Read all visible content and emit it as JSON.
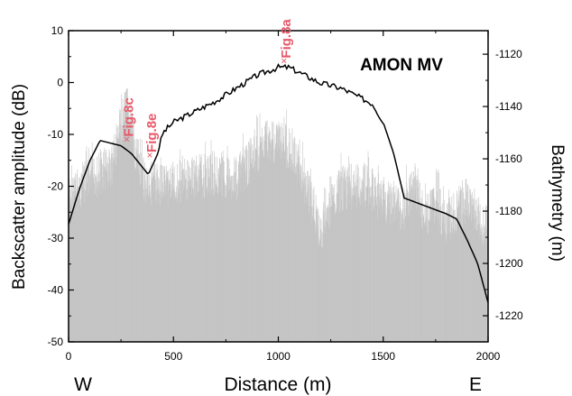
{
  "chart_data": {
    "type": "area",
    "title": "AMON MV",
    "xlabel": "Distance (m)",
    "ylabel_left": "Backscatter amplitude (dB)",
    "ylabel_right": "Bathymetry (m)",
    "xlim": [
      0,
      2000
    ],
    "ylim_left": [
      -50,
      10
    ],
    "ylim_right": [
      -1230,
      -1111
    ],
    "x_ticks": [
      "0",
      "500",
      "1000",
      "1500",
      "2000"
    ],
    "y_left_ticks": [
      "10",
      "0",
      "-10",
      "-20",
      "-30",
      "-40",
      "-50"
    ],
    "y_right_ticks": [
      "-1120",
      "-1140",
      "-1160",
      "-1180",
      "-1200",
      "-1220"
    ],
    "direction_labels": {
      "west": "W",
      "east": "E"
    },
    "colors": {
      "backscatter": "#c0c0c0",
      "bathymetry": "#000000",
      "annotation": "#e8596a"
    },
    "series": [
      {
        "kind": "backscatter_upper_envelope",
        "axis": "left",
        "x": [
          0,
          100,
          200,
          250,
          280,
          300,
          350,
          400,
          500,
          600,
          700,
          800,
          900,
          950,
          1000,
          1050,
          1100,
          1150,
          1200,
          1220,
          1300,
          1400,
          1500,
          1600,
          1650,
          1700,
          1750,
          1800,
          1900,
          2000
        ],
        "y": [
          -18,
          -14,
          -12,
          -4,
          0,
          -5,
          -14,
          -15,
          -15,
          -14,
          -13,
          -14,
          -9,
          -6,
          -7,
          -8,
          -12,
          -17,
          -25,
          -22,
          -16,
          -15,
          -18,
          -20,
          -14,
          -22,
          -18,
          -23,
          -18,
          -24
        ]
      },
      {
        "kind": "bathymetry",
        "axis": "right",
        "x": [
          0,
          50,
          100,
          150,
          200,
          250,
          300,
          350,
          380,
          420,
          450,
          500,
          600,
          700,
          800,
          900,
          1000,
          1050,
          1100,
          1200,
          1300,
          1400,
          1450,
          1500,
          1550,
          1600,
          1700,
          1800,
          1850,
          1900,
          1950,
          2000
        ],
        "y": [
          -1185,
          -1172,
          -1161,
          -1153,
          -1154,
          -1155,
          -1158,
          -1163,
          -1166,
          -1159,
          -1150,
          -1146,
          -1142,
          -1138,
          -1133,
          -1128,
          -1125,
          -1125,
          -1127,
          -1131,
          -1133,
          -1137,
          -1139,
          -1146,
          -1158,
          -1175,
          -1178,
          -1181,
          -1183,
          -1191,
          -1200,
          -1215
        ]
      }
    ],
    "annotations": [
      {
        "text": "Fig.8c",
        "x": 290,
        "y": -1155
      },
      {
        "text": "Fig.8e",
        "x": 400,
        "y": -1161
      },
      {
        "text": "Fig.8a",
        "x": 1040,
        "y": -1125
      }
    ]
  }
}
